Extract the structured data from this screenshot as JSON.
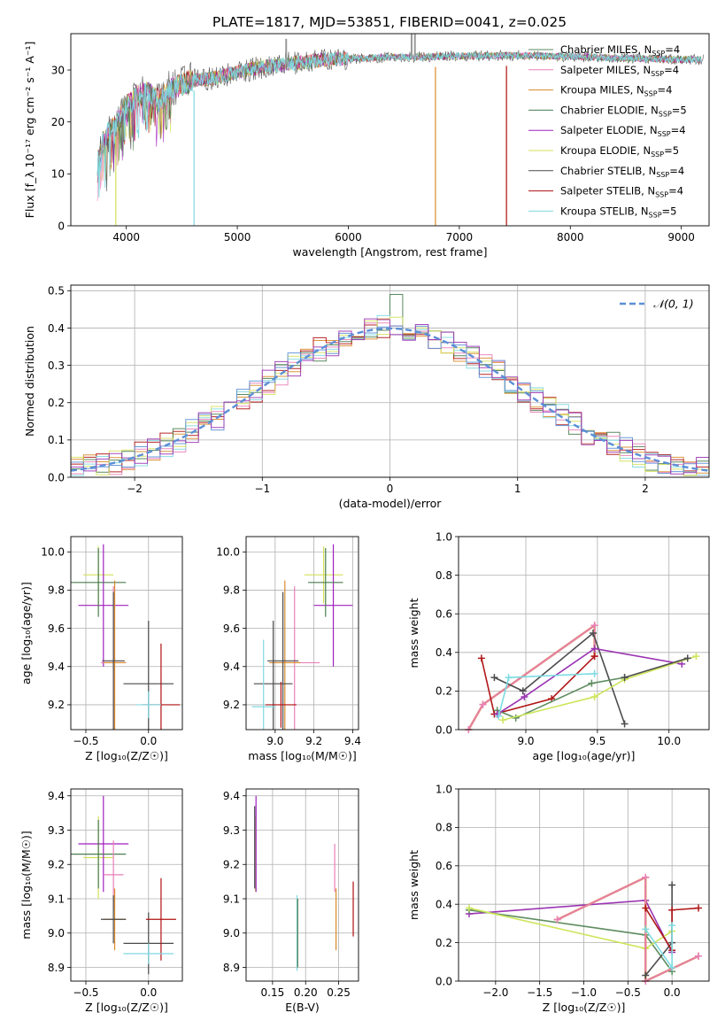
{
  "page_title": "PLATE=1817, MJD=53851, FIBERID=0041, z=0.025",
  "colors": {
    "chabrier_miles": "#5a8a5f",
    "salpeter_miles": "#e97fb8",
    "kroupa_miles": "#d98a2b",
    "chabrier_elodie": "#4a7c4e",
    "salpeter_elodie": "#a020c0",
    "kroupa_elodie": "#d4e05a",
    "chabrier_stelib": "#4a4a4a",
    "salpeter_stelib": "#b01010",
    "kroupa_stelib": "#7fd8e0",
    "normal_curve": "#5b8fd6",
    "weights_orange": "#d9843a",
    "weights_green": "#5f8d61",
    "weights_purple": "#9b34b3",
    "weights_lime": "#cde55a",
    "weights_cyan": "#7ddbe2",
    "weights_grey": "#4d4d4d",
    "weights_red": "#b01818"
  },
  "chart_data": [
    {
      "id": "spectrum",
      "type": "line",
      "title": "PLATE=1817, MJD=53851, FIBERID=0041, z=0.025",
      "xlabel": "wavelength [Angstrom, rest frame]",
      "ylabel": "Flux [f_λ 10⁻¹⁷ erg cm⁻² s⁻¹ A⁻¹]",
      "xlim": [
        3500,
        9250
      ],
      "ylim": [
        0,
        37
      ],
      "xticks": [
        4000,
        5000,
        6000,
        7000,
        8000,
        9000
      ],
      "yticks": [
        0,
        10,
        20,
        30
      ],
      "grid": false,
      "legend_position": "top-right",
      "legend": [
        {
          "label": "Chabrier MILES, N",
          "sub": "SSP",
          "suffix": "=4",
          "color_key": "chabrier_miles"
        },
        {
          "label": "Salpeter MILES, N",
          "sub": "SSP",
          "suffix": "=4",
          "color_key": "salpeter_miles"
        },
        {
          "label": "Kroupa MILES, N",
          "sub": "SSP",
          "suffix": "=4",
          "color_key": "kroupa_miles"
        },
        {
          "label": "Chabrier ELODIE, N",
          "sub": "SSP",
          "suffix": "=5",
          "color_key": "chabrier_elodie"
        },
        {
          "label": "Salpeter ELODIE, N",
          "sub": "SSP",
          "suffix": "=4",
          "color_key": "salpeter_elodie"
        },
        {
          "label": "Kroupa ELODIE, N",
          "sub": "SSP",
          "suffix": "=5",
          "color_key": "kroupa_elodie"
        },
        {
          "label": "Chabrier STELIB, N",
          "sub": "SSP",
          "suffix": "=4",
          "color_key": "chabrier_stelib"
        },
        {
          "label": "Salpeter STELIB, N",
          "sub": "SSP",
          "suffix": "=4",
          "color_key": "salpeter_stelib"
        },
        {
          "label": "Kroupa STELIB, N",
          "sub": "SSP",
          "suffix": "=5",
          "color_key": "kroupa_stelib"
        }
      ],
      "continuum": {
        "x": [
          3740,
          3800,
          3900,
          4000,
          4100,
          4200,
          4300,
          4400,
          4600,
          4800,
          5000,
          5200,
          5400,
          5600,
          5800,
          6000,
          6200,
          6400,
          6600,
          6800,
          7000,
          7200,
          7400,
          7600,
          7800,
          8000,
          8200,
          8400,
          8600,
          8800,
          9000,
          9200
        ],
        "y": [
          12,
          17,
          19,
          23,
          25,
          25.5,
          24,
          26.5,
          28,
          28.5,
          29.5,
          30.5,
          31,
          31.5,
          32,
          32.2,
          32.3,
          32.5,
          32.5,
          32.6,
          32.7,
          32.7,
          32.8,
          32.8,
          32.7,
          32.6,
          32.5,
          32.3,
          32.2,
          32.1,
          32,
          32
        ]
      },
      "noise_amplitude": 1.8,
      "dropouts": [
        {
          "x": 3905,
          "color_key": "kroupa_elodie"
        },
        {
          "x": 4610,
          "color_key": "kroupa_stelib"
        },
        {
          "x": 6785,
          "color_key": "kroupa_miles"
        },
        {
          "x": 7425,
          "color_key": "salpeter_stelib"
        }
      ],
      "spikes": [
        {
          "x": 5440,
          "y": 36,
          "color_key": "chabrier_stelib"
        },
        {
          "x": 6570,
          "y": 37,
          "color_key": "chabrier_stelib"
        },
        {
          "x": 6600,
          "y": 37,
          "color_key": "chabrier_stelib"
        }
      ]
    },
    {
      "id": "residuals",
      "type": "histogram",
      "xlabel": "(data-model)/error",
      "ylabel": "Normed distribution",
      "xlim": [
        -2.5,
        2.5
      ],
      "ylim": [
        0,
        0.515
      ],
      "xticks": [
        -2,
        -1,
        0,
        1,
        2
      ],
      "yticks": [
        0.0,
        0.1,
        0.2,
        0.3,
        0.4,
        0.5
      ],
      "grid": true,
      "legend_position": "top-right",
      "legend_label": "𝒩(0, 1)",
      "bin_width": 0.1,
      "series_colors": [
        "kroupa_miles",
        "salpeter_stelib",
        "chabrier_elodie",
        "salpeter_miles",
        "kroupa_stelib",
        "kroupa_elodie",
        "normal_curve",
        "weights_purple"
      ],
      "peak_bin": {
        "x": 0.05,
        "y": 0.49
      }
    },
    {
      "id": "age-vs-Z",
      "type": "errorbar",
      "xlabel": "Z [log₁₀(Z/Z☉)]",
      "ylabel": "age  [log₁₀(age/yr)]",
      "xlim": [
        -0.62,
        0.27
      ],
      "ylim": [
        9.07,
        10.08
      ],
      "xticks": [
        -0.5,
        0.0
      ],
      "yticks": [
        9.2,
        9.4,
        9.6,
        9.8,
        10.0
      ],
      "grid": true,
      "points": [
        {
          "x": -0.4,
          "y": 9.88,
          "xerr": 0.12,
          "yerr": 0.15,
          "color_key": "kroupa_elodie"
        },
        {
          "x": -0.36,
          "y": 9.72,
          "xerr": 0.2,
          "yerr": 0.32,
          "color_key": "salpeter_elodie"
        },
        {
          "x": -0.4,
          "y": 9.84,
          "xerr": 0.22,
          "yerr": 0.18,
          "color_key": "chabrier_elodie"
        },
        {
          "x": -0.28,
          "y": 9.42,
          "xerr": 0.1,
          "yerr": 0.4,
          "color_key": "salpeter_miles"
        },
        {
          "x": -0.27,
          "y": 9.42,
          "xerr": 0.09,
          "yerr": 0.43,
          "color_key": "kroupa_miles"
        },
        {
          "x": -0.28,
          "y": 9.43,
          "xerr": 0.09,
          "yerr": 0.36,
          "color_key": "chabrier_stelib"
        },
        {
          "x": 0.0,
          "y": 9.31,
          "xerr": 0.2,
          "yerr": 0.33,
          "color_key": "chabrier_stelib"
        },
        {
          "x": 0.1,
          "y": 9.2,
          "xerr": 0.15,
          "yerr": 0.32,
          "color_key": "salpeter_stelib"
        },
        {
          "x": 0.0,
          "y": 9.2,
          "xerr": 0.1,
          "yerr": 0.07,
          "color_key": "kroupa_stelib"
        }
      ]
    },
    {
      "id": "age-vs-mass",
      "type": "errorbar",
      "xlabel": "mass [log₁₀(M/M☉)]",
      "ylabel": "",
      "xlim": [
        8.85,
        9.43
      ],
      "ylim": [
        9.07,
        10.08
      ],
      "xticks": [
        9.0,
        9.2,
        9.4
      ],
      "yticks": [
        9.2,
        9.4,
        9.6,
        9.8,
        10.0
      ],
      "grid": true,
      "points": [
        {
          "x": 9.25,
          "y": 9.88,
          "xerr": 0.1,
          "yerr": 0.15,
          "color_key": "kroupa_elodie"
        },
        {
          "x": 9.3,
          "y": 9.72,
          "xerr": 0.1,
          "yerr": 0.32,
          "color_key": "salpeter_elodie"
        },
        {
          "x": 9.26,
          "y": 9.84,
          "xerr": 0.09,
          "yerr": 0.18,
          "color_key": "chabrier_elodie"
        },
        {
          "x": 9.1,
          "y": 9.42,
          "xerr": 0.13,
          "yerr": 0.4,
          "color_key": "salpeter_miles"
        },
        {
          "x": 9.05,
          "y": 9.42,
          "xerr": 0.08,
          "yerr": 0.43,
          "color_key": "kroupa_miles"
        },
        {
          "x": 9.04,
          "y": 9.43,
          "xerr": 0.08,
          "yerr": 0.36,
          "color_key": "chabrier_stelib"
        },
        {
          "x": 8.99,
          "y": 9.31,
          "xerr": 0.1,
          "yerr": 0.33,
          "color_key": "chabrier_stelib"
        },
        {
          "x": 9.03,
          "y": 9.2,
          "xerr": 0.08,
          "yerr": 0.12,
          "color_key": "salpeter_stelib"
        },
        {
          "x": 8.94,
          "y": 9.19,
          "xerr": 0.06,
          "yerr": 0.35,
          "color_key": "kroupa_stelib"
        }
      ]
    },
    {
      "id": "weight-vs-age",
      "type": "line",
      "xlabel": "age  [log₁₀(age/yr)]",
      "ylabel": "mass weight",
      "xlim": [
        8.53,
        10.28
      ],
      "ylim": [
        0.0,
        1.0
      ],
      "xticks": [
        9.0,
        9.5,
        10.0
      ],
      "yticks": [
        0.0,
        0.2,
        0.4,
        0.6,
        0.8,
        1.0
      ],
      "grid": true,
      "series": [
        {
          "color_key": "weights_orange",
          "x": [
            8.6,
            8.7,
            9.48,
            9.48
          ],
          "y": [
            0.0,
            0.13,
            0.54,
            0.38
          ]
        },
        {
          "color_key": "salpeter_miles",
          "x": [
            8.6,
            8.7,
            9.48,
            9.48
          ],
          "y": [
            0.0,
            0.13,
            0.54,
            0.38
          ]
        },
        {
          "color_key": "weights_red",
          "x": [
            8.69,
            8.78,
            9.18,
            9.48
          ],
          "y": [
            0.37,
            0.08,
            0.16,
            0.38
          ]
        },
        {
          "color_key": "weights_grey",
          "x": [
            8.78,
            8.98,
            9.47,
            9.69
          ],
          "y": [
            0.27,
            0.2,
            0.5,
            0.03
          ]
        },
        {
          "color_key": "weights_green",
          "x": [
            8.8,
            8.93,
            9.46,
            9.69
          ],
          "y": [
            0.1,
            0.06,
            0.24,
            0.27
          ]
        },
        {
          "color_key": "weights_purple",
          "x": [
            8.8,
            8.99,
            9.48,
            10.09
          ],
          "y": [
            0.08,
            0.17,
            0.42,
            0.34
          ]
        },
        {
          "color_key": "weights_cyan",
          "x": [
            8.81,
            8.88,
            9.48
          ],
          "y": [
            0.07,
            0.27,
            0.29
          ]
        },
        {
          "color_key": "weights_lime",
          "x": [
            8.84,
            9.48,
            9.69,
            10.19
          ],
          "y": [
            0.05,
            0.17,
            0.26,
            0.38
          ]
        },
        {
          "color_key": "weights_grey",
          "x": [
            9.69,
            10.13
          ],
          "y": [
            0.27,
            0.37
          ]
        }
      ]
    },
    {
      "id": "mass-vs-Z",
      "type": "errorbar",
      "xlabel": "Z [log₁₀(Z/Z☉)]",
      "ylabel": "mass [log₁₀(M/M☉)]",
      "xlim": [
        -0.62,
        0.27
      ],
      "ylim": [
        8.86,
        9.42
      ],
      "xticks": [
        -0.5,
        0.0
      ],
      "yticks": [
        8.9,
        9.0,
        9.1,
        9.2,
        9.3,
        9.4
      ],
      "grid": true,
      "points": [
        {
          "x": -0.4,
          "y": 9.22,
          "xerr": 0.12,
          "yerr": 0.12,
          "color_key": "kroupa_elodie"
        },
        {
          "x": -0.36,
          "y": 9.26,
          "xerr": 0.2,
          "yerr": 0.14,
          "color_key": "salpeter_elodie"
        },
        {
          "x": -0.4,
          "y": 9.23,
          "xerr": 0.22,
          "yerr": 0.1,
          "color_key": "chabrier_elodie"
        },
        {
          "x": -0.28,
          "y": 9.17,
          "xerr": 0.08,
          "yerr": 0.1,
          "color_key": "salpeter_miles"
        },
        {
          "x": -0.27,
          "y": 9.04,
          "xerr": 0.09,
          "yerr": 0.09,
          "color_key": "kroupa_miles"
        },
        {
          "x": -0.28,
          "y": 9.04,
          "xerr": 0.1,
          "yerr": 0.07,
          "color_key": "chabrier_stelib"
        },
        {
          "x": 0.0,
          "y": 8.97,
          "xerr": 0.2,
          "yerr": 0.09,
          "color_key": "chabrier_stelib"
        },
        {
          "x": 0.1,
          "y": 9.04,
          "xerr": 0.12,
          "yerr": 0.12,
          "color_key": "salpeter_stelib"
        },
        {
          "x": 0.0,
          "y": 8.94,
          "xerr": 0.2,
          "yerr": 0.03,
          "color_key": "kroupa_stelib"
        }
      ]
    },
    {
      "id": "mass-vs-ebv",
      "type": "errorbar",
      "xlabel": "E(B-V)",
      "ylabel": "",
      "xlim": [
        0.11,
        0.28
      ],
      "ylim": [
        8.86,
        9.42
      ],
      "xticks": [
        0.15,
        0.2,
        0.25
      ],
      "yticks": [
        8.9,
        9.0,
        9.1,
        9.2,
        9.3,
        9.4
      ],
      "grid": true,
      "points": [
        {
          "x": 0.124,
          "y": 9.23,
          "xerr": 0.0,
          "yerr": 0.11,
          "color_key": "kroupa_elodie"
        },
        {
          "x": 0.125,
          "y": 9.26,
          "xerr": 0.0,
          "yerr": 0.14,
          "color_key": "salpeter_elodie"
        },
        {
          "x": 0.123,
          "y": 9.25,
          "xerr": 0.0,
          "yerr": 0.12,
          "color_key": "chabrier_stelib"
        },
        {
          "x": 0.187,
          "y": 9.0,
          "xerr": 0.0,
          "yerr": 0.11,
          "color_key": "kroupa_stelib"
        },
        {
          "x": 0.188,
          "y": 9.0,
          "xerr": 0.0,
          "yerr": 0.1,
          "color_key": "chabrier_elodie"
        },
        {
          "x": 0.244,
          "y": 9.19,
          "xerr": 0.0,
          "yerr": 0.07,
          "color_key": "salpeter_miles"
        },
        {
          "x": 0.246,
          "y": 9.04,
          "xerr": 0.0,
          "yerr": 0.09,
          "color_key": "kroupa_miles"
        },
        {
          "x": 0.272,
          "y": 9.07,
          "xerr": 0.0,
          "yerr": 0.08,
          "color_key": "salpeter_stelib"
        }
      ]
    },
    {
      "id": "weight-vs-Z",
      "type": "line",
      "xlabel": "Z [log₁₀(Z/Z☉)]",
      "ylabel": "mass weight",
      "xlim": [
        -2.42,
        0.42
      ],
      "ylim": [
        0.0,
        1.0
      ],
      "xticks": [
        -2.0,
        -1.5,
        -1.0,
        -0.5,
        0.0
      ],
      "yticks": [
        0.0,
        0.2,
        0.4,
        0.6,
        0.8,
        1.0
      ],
      "grid": true,
      "series": [
        {
          "color_key": "weights_purple",
          "x": [
            -2.3,
            -0.3,
            0.0
          ],
          "y": [
            0.35,
            0.42,
            0.15
          ]
        },
        {
          "color_key": "weights_green",
          "x": [
            -2.3,
            -0.3,
            0.0
          ],
          "y": [
            0.37,
            0.24,
            0.05
          ]
        },
        {
          "color_key": "weights_lime",
          "x": [
            -2.3,
            -0.3,
            0.0
          ],
          "y": [
            0.38,
            0.17,
            0.26
          ]
        },
        {
          "color_key": "weights_orange",
          "x": [
            -1.3,
            -0.3,
            -0.3,
            0.3
          ],
          "y": [
            0.32,
            0.54,
            0.0,
            0.13
          ]
        },
        {
          "color_key": "salpeter_miles",
          "x": [
            -1.3,
            -0.3,
            -0.3,
            0.3
          ],
          "y": [
            0.32,
            0.54,
            0.0,
            0.13
          ]
        },
        {
          "color_key": "weights_grey",
          "x": [
            -0.3,
            0.0,
            0.0
          ],
          "y": [
            0.03,
            0.2,
            0.5
          ]
        },
        {
          "color_key": "weights_red",
          "x": [
            -0.3,
            0.0,
            0.0,
            0.3
          ],
          "y": [
            0.38,
            0.16,
            0.37,
            0.38
          ]
        },
        {
          "color_key": "weights_cyan",
          "x": [
            -0.3,
            0.0,
            0.0
          ],
          "y": [
            0.27,
            0.07,
            0.29
          ]
        }
      ]
    }
  ]
}
